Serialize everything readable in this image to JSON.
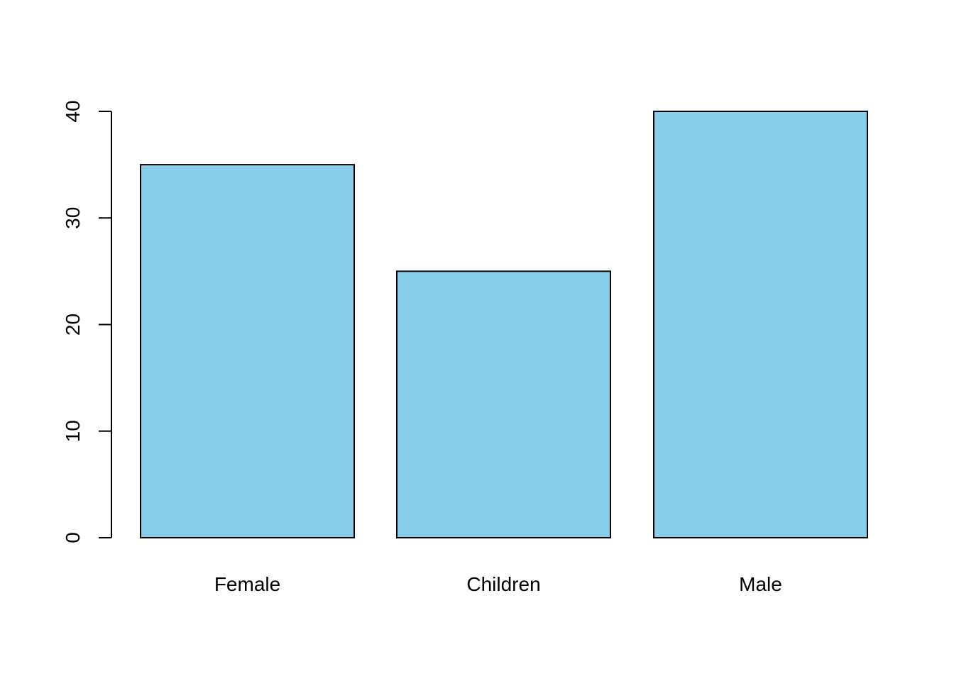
{
  "chart_data": {
    "type": "bar",
    "title": "",
    "xlabel": "",
    "ylabel": "",
    "categories": [
      "Female",
      "Children",
      "Male"
    ],
    "values": [
      35,
      25,
      40
    ],
    "ylim": [
      0,
      40
    ],
    "yticks": [
      0,
      10,
      20,
      30,
      40
    ],
    "grid": false,
    "bar_color": "#87CEEB",
    "border_color": "#000000"
  }
}
